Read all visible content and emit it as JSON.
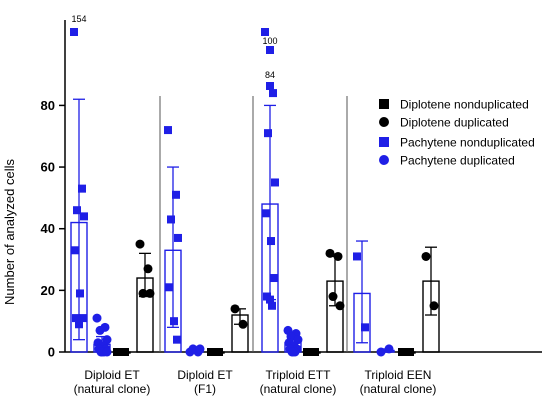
{
  "chart_data": {
    "type": "bar",
    "ylabel": "Number of analyzed cells",
    "ylim": [
      0,
      85
    ],
    "y_ticks": [
      0,
      20,
      40,
      60,
      80
    ],
    "groups": [
      {
        "label_line1": "Diploid ET",
        "label_line2": "(natural clone)"
      },
      {
        "label_line1": "Diploid ET",
        "label_line2": "(F1)"
      },
      {
        "label_line1": "Triploid ETT",
        "label_line2": "(natural clone)"
      },
      {
        "label_line1": "Triploid EEN",
        "label_line2": "(natural clone)"
      }
    ],
    "series": [
      {
        "name": "Diplotene nonduplicated",
        "marker": "square",
        "color": "#000000"
      },
      {
        "name": "Diplotene duplicated",
        "marker": "circle",
        "color": "#000000"
      },
      {
        "name": "Pachytene nonduplicated",
        "marker": "square",
        "color": "#1f1fe6"
      },
      {
        "name": "Pachytene duplicated",
        "marker": "circle",
        "color": "#1f1fe6"
      }
    ],
    "bars": [
      {
        "group": 0,
        "series": "Pachytene nonduplicated",
        "mean": 42,
        "sd_low": 4,
        "sd_high": 82,
        "points": [
          154,
          53,
          46,
          44,
          33,
          19,
          11,
          11,
          9
        ]
      },
      {
        "group": 0,
        "series": "Pachytene duplicated",
        "mean": 2.5,
        "sd_low": 0,
        "sd_high": 5,
        "points": [
          11,
          8,
          7,
          4,
          3,
          2,
          1,
          1,
          0,
          0,
          0,
          0
        ]
      },
      {
        "group": 0,
        "series": "Diplotene nonduplicated",
        "mean": 0,
        "sd_low": 0,
        "sd_high": 0,
        "points": [
          0,
          0,
          0
        ]
      },
      {
        "group": 0,
        "series": "Diplotene duplicated",
        "mean": 24,
        "sd_low": 18,
        "sd_high": 32,
        "points": [
          35,
          27,
          19,
          19
        ]
      },
      {
        "group": 1,
        "series": "Pachytene nonduplicated",
        "mean": 33,
        "sd_low": 8,
        "sd_high": 60,
        "points": [
          72,
          51,
          43,
          37,
          21,
          10,
          4
        ]
      },
      {
        "group": 1,
        "series": "Pachytene duplicated",
        "mean": 0.3,
        "sd_low": 0,
        "sd_high": 0.8,
        "points": [
          0,
          0,
          1,
          1
        ]
      },
      {
        "group": 1,
        "series": "Diplotene nonduplicated",
        "mean": 0,
        "sd_low": 0,
        "sd_high": 0,
        "points": [
          0,
          0,
          0
        ]
      },
      {
        "group": 1,
        "series": "Diplotene duplicated",
        "mean": 12,
        "sd_low": 9,
        "sd_high": 14,
        "points": [
          14,
          9
        ]
      },
      {
        "group": 2,
        "series": "Triploid ETT pachytene nonduplicated",
        "mean": 48,
        "sd_low": 17,
        "sd_high": 80,
        "points": [
          100,
          84,
          71,
          55,
          45,
          36,
          24,
          18,
          17,
          15
        ]
      },
      {
        "group": 2,
        "series": "Pachytene duplicated",
        "mean": 3,
        "sd_low": 0,
        "sd_high": 6,
        "points": [
          7,
          6,
          5,
          4,
          3,
          2,
          1,
          1,
          0,
          0,
          0
        ]
      },
      {
        "group": 2,
        "series": "Diplotene nonduplicated",
        "mean": 0,
        "sd_low": 0,
        "sd_high": 0,
        "points": [
          0,
          0,
          0
        ]
      },
      {
        "group": 2,
        "series": "Diplotene duplicated",
        "mean": 23,
        "sd_low": 15,
        "sd_high": 31,
        "points": [
          32,
          31,
          18,
          15
        ]
      },
      {
        "group": 3,
        "series": "Pachytene nonduplicated",
        "mean": 19,
        "sd_low": 3,
        "sd_high": 36,
        "points": [
          31,
          8
        ]
      },
      {
        "group": 3,
        "series": "Pachytene duplicated",
        "mean": 0.5,
        "sd_low": 0,
        "sd_high": 1,
        "points": [
          0,
          1
        ]
      },
      {
        "group": 3,
        "series": "Diplotene nonduplicated",
        "mean": 0,
        "sd_low": 0,
        "sd_high": 0,
        "points": [
          0,
          0
        ]
      },
      {
        "group": 3,
        "series": "Diplotene duplicated",
        "mean": 23,
        "sd_low": 12,
        "sd_high": 34,
        "points": [
          31,
          15
        ]
      }
    ],
    "annotations": [
      "154",
      "100",
      "84"
    ]
  }
}
